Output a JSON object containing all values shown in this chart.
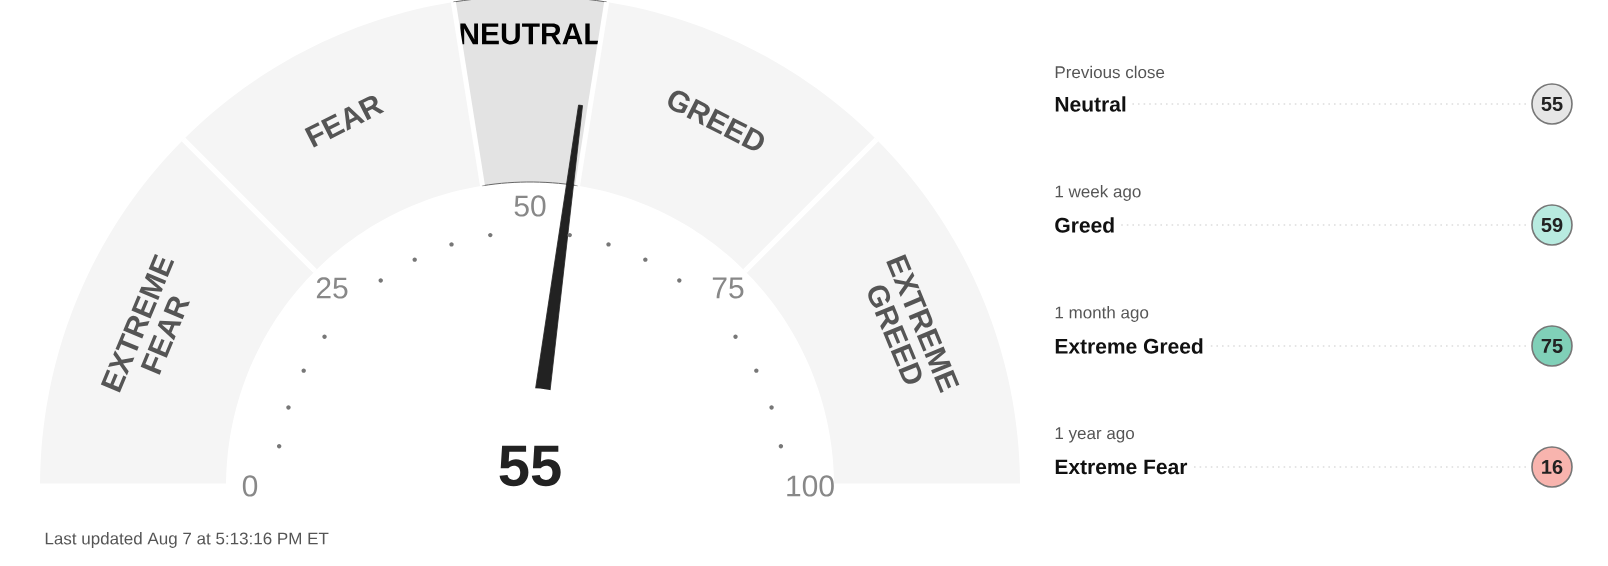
{
  "chart_data": [
    {
      "type": "donut",
      "categories": [
        "EXTREME FEAR",
        "FEAR",
        "NEUTRAL",
        "GREED",
        "EXTREME GREED"
      ],
      "values": [
        25,
        20,
        10,
        20,
        25
      ],
      "colors": [
        "#f5f5f5",
        "#f5f5f5",
        "#e3e3e3",
        "#f5f5f5",
        "#f5f5f5"
      ],
      "needle": "NEUTRAL",
      "annotations": [
        "55",
        "Last updated Aug 7 at 5:13:16 PM ET",
        "0",
        "25",
        "50",
        "75",
        "100"
      ]
    },
    {
      "type": "other",
      "categories": [
        "Previous close",
        "1 week ago",
        "1 month ago",
        "1 year ago"
      ],
      "values": [
        55,
        59,
        75,
        16
      ],
      "colors": [
        "#e6e6e6",
        "#b8ebe0",
        "#80d0b8",
        "#f8b4ae"
      ],
      "data_labels": true,
      "annotations": [
        {
          "text": "Neutral",
          "x": "Previous close"
        },
        {
          "text": "Greed",
          "x": "1 week ago"
        },
        {
          "text": "Extreme Greed",
          "x": "1 month ago"
        },
        {
          "text": "Extreme Fear",
          "x": "1 year ago"
        }
      ]
    }
  ]
}
